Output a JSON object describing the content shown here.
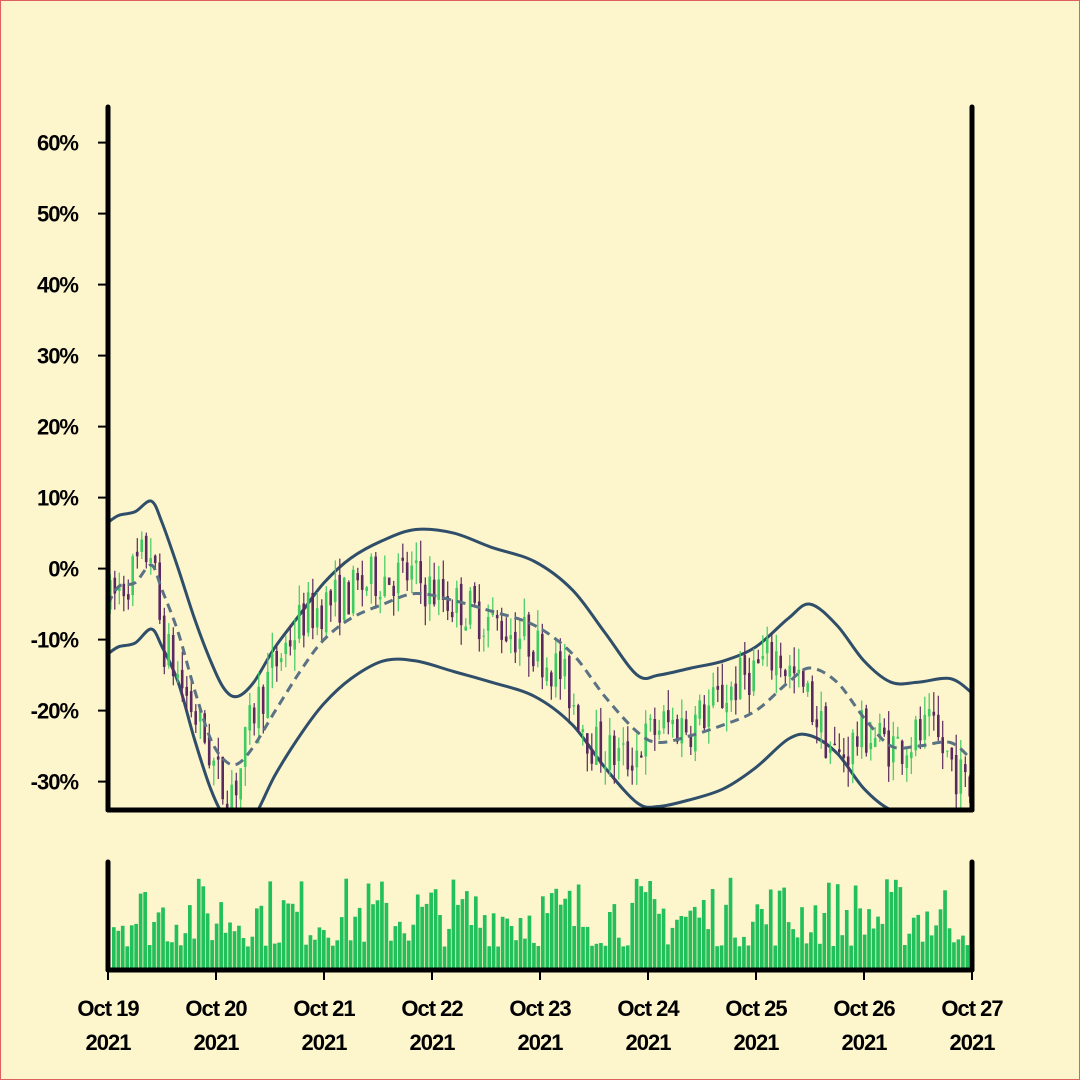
{
  "chart_data": {
    "type": "candlestick",
    "price_axis": {
      "ylim": [
        -34,
        66
      ],
      "ticks": [
        -30,
        -20,
        -10,
        0,
        10,
        20,
        30,
        40,
        50,
        60
      ],
      "tick_labels": [
        "-30%",
        "-20%",
        "-10%",
        "0%",
        "10%",
        "20%",
        "30%",
        "40%",
        "50%",
        "60%"
      ]
    },
    "x_axis": {
      "range_days": [
        0,
        8
      ],
      "tick_days": [
        0,
        1,
        2,
        3,
        4,
        5,
        6,
        7,
        8
      ],
      "tick_labels": [
        [
          "Oct 19",
          "2021"
        ],
        [
          "Oct 20",
          "2021"
        ],
        [
          "Oct 21",
          "2021"
        ],
        [
          "Oct 22",
          "2021"
        ],
        [
          "Oct 23",
          "2021"
        ],
        [
          "Oct 24",
          "2021"
        ],
        [
          "Oct 25",
          "2021"
        ],
        [
          "Oct 26",
          "2021"
        ],
        [
          "Oct 27",
          "2021"
        ]
      ]
    },
    "moving_average": {
      "style": "dashed",
      "points": [
        [
          0,
          -5
        ],
        [
          0.1,
          -2.5
        ],
        [
          0.25,
          -2
        ],
        [
          0.4,
          0.5
        ],
        [
          0.5,
          -3
        ],
        [
          0.65,
          -9
        ],
        [
          0.8,
          -17
        ],
        [
          0.95,
          -24
        ],
        [
          1.08,
          -27
        ],
        [
          1.2,
          -27.5
        ],
        [
          1.35,
          -25
        ],
        [
          1.55,
          -20
        ],
        [
          1.8,
          -14
        ],
        [
          2.0,
          -10
        ],
        [
          2.25,
          -7
        ],
        [
          2.55,
          -5
        ],
        [
          2.85,
          -3.5
        ],
        [
          3.2,
          -4.5
        ],
        [
          3.55,
          -6
        ],
        [
          3.95,
          -8
        ],
        [
          4.3,
          -12
        ],
        [
          4.6,
          -18
        ],
        [
          4.9,
          -23
        ],
        [
          5.1,
          -24.5
        ],
        [
          5.4,
          -23.5
        ],
        [
          5.7,
          -22
        ],
        [
          6.0,
          -20
        ],
        [
          6.3,
          -16
        ],
        [
          6.5,
          -14
        ],
        [
          6.75,
          -16
        ],
        [
          7.0,
          -21
        ],
        [
          7.25,
          -25
        ],
        [
          7.5,
          -25
        ],
        [
          7.8,
          -24.5
        ],
        [
          8.0,
          -27
        ]
      ]
    },
    "bands": [
      {
        "name": "upper",
        "points": [
          [
            0,
            6.5
          ],
          [
            0.1,
            7.5
          ],
          [
            0.25,
            8
          ],
          [
            0.4,
            9.5
          ],
          [
            0.5,
            6.5
          ],
          [
            0.65,
            0
          ],
          [
            0.8,
            -7
          ],
          [
            0.95,
            -13
          ],
          [
            1.08,
            -17
          ],
          [
            1.2,
            -18
          ],
          [
            1.35,
            -16
          ],
          [
            1.55,
            -11
          ],
          [
            1.8,
            -6
          ],
          [
            2.0,
            -2
          ],
          [
            2.25,
            1.5
          ],
          [
            2.55,
            4
          ],
          [
            2.85,
            5.5
          ],
          [
            3.2,
            5
          ],
          [
            3.55,
            3
          ],
          [
            3.95,
            1
          ],
          [
            4.3,
            -3
          ],
          [
            4.6,
            -9
          ],
          [
            4.9,
            -15
          ],
          [
            5.1,
            -15
          ],
          [
            5.4,
            -14
          ],
          [
            5.7,
            -13
          ],
          [
            6.0,
            -11
          ],
          [
            6.3,
            -7
          ],
          [
            6.5,
            -5
          ],
          [
            6.75,
            -8
          ],
          [
            7.0,
            -13
          ],
          [
            7.25,
            -16
          ],
          [
            7.5,
            -16
          ],
          [
            7.8,
            -15.5
          ],
          [
            8.0,
            -17.5
          ]
        ]
      },
      {
        "name": "lower",
        "points": [
          [
            0,
            -12
          ],
          [
            0.1,
            -11
          ],
          [
            0.25,
            -10.5
          ],
          [
            0.4,
            -8.5
          ],
          [
            0.5,
            -11
          ],
          [
            0.65,
            -16
          ],
          [
            0.8,
            -24
          ],
          [
            0.95,
            -31
          ],
          [
            1.08,
            -35
          ],
          [
            1.2,
            -36
          ],
          [
            1.35,
            -35
          ],
          [
            1.55,
            -29
          ],
          [
            1.8,
            -23
          ],
          [
            2.0,
            -19
          ],
          [
            2.25,
            -15.5
          ],
          [
            2.55,
            -13
          ],
          [
            2.85,
            -13
          ],
          [
            3.2,
            -14.5
          ],
          [
            3.55,
            -16
          ],
          [
            3.95,
            -18
          ],
          [
            4.3,
            -22
          ],
          [
            4.6,
            -28
          ],
          [
            4.9,
            -33
          ],
          [
            5.1,
            -33.5
          ],
          [
            5.4,
            -32.5
          ],
          [
            5.7,
            -31
          ],
          [
            6.0,
            -28
          ],
          [
            6.3,
            -24
          ],
          [
            6.5,
            -23.5
          ],
          [
            6.75,
            -26
          ],
          [
            7.0,
            -31
          ],
          [
            7.25,
            -34
          ],
          [
            7.5,
            -34.5
          ],
          [
            7.8,
            -34
          ],
          [
            8.0,
            -35
          ]
        ]
      }
    ],
    "candles": {
      "interval_hours": 1,
      "start_day": 0,
      "count": 192,
      "open_close_anchor_points": [
        [
          0,
          -5
        ],
        [
          0.2,
          -1
        ],
        [
          0.4,
          3
        ],
        [
          0.5,
          -10
        ],
        [
          0.7,
          -17
        ],
        [
          0.9,
          -24
        ],
        [
          1.05,
          -31
        ],
        [
          1.2,
          -30
        ],
        [
          1.35,
          -20
        ],
        [
          1.6,
          -12
        ],
        [
          1.8,
          -7
        ],
        [
          2.0,
          -5
        ],
        [
          2.2,
          -4
        ],
        [
          2.5,
          -1
        ],
        [
          2.8,
          -1
        ],
        [
          3.1,
          -4
        ],
        [
          3.5,
          -7
        ],
        [
          3.9,
          -10
        ],
        [
          4.2,
          -15
        ],
        [
          4.5,
          -25
        ],
        [
          4.8,
          -27
        ],
        [
          5.1,
          -22
        ],
        [
          5.4,
          -22
        ],
        [
          5.7,
          -18
        ],
        [
          5.9,
          -15
        ],
        [
          6.2,
          -12
        ],
        [
          6.5,
          -19
        ],
        [
          6.75,
          -27
        ],
        [
          7.0,
          -23
        ],
        [
          7.3,
          -25
        ],
        [
          7.6,
          -23
        ],
        [
          7.8,
          -27
        ],
        [
          8.0,
          -32
        ]
      ],
      "colors": {
        "up": "#3ecc62",
        "down": "#5a2a5e"
      }
    },
    "volume": {
      "color": "#22c05a",
      "count": 192,
      "relative_heights_range": [
        0.25,
        1.0
      ]
    }
  },
  "colors": {
    "background": "#fdf5cc",
    "band_fill": "#fdf5cc",
    "band_line": "#2f4e6a",
    "ma_line": "#5a7283",
    "axis": "#000000"
  }
}
